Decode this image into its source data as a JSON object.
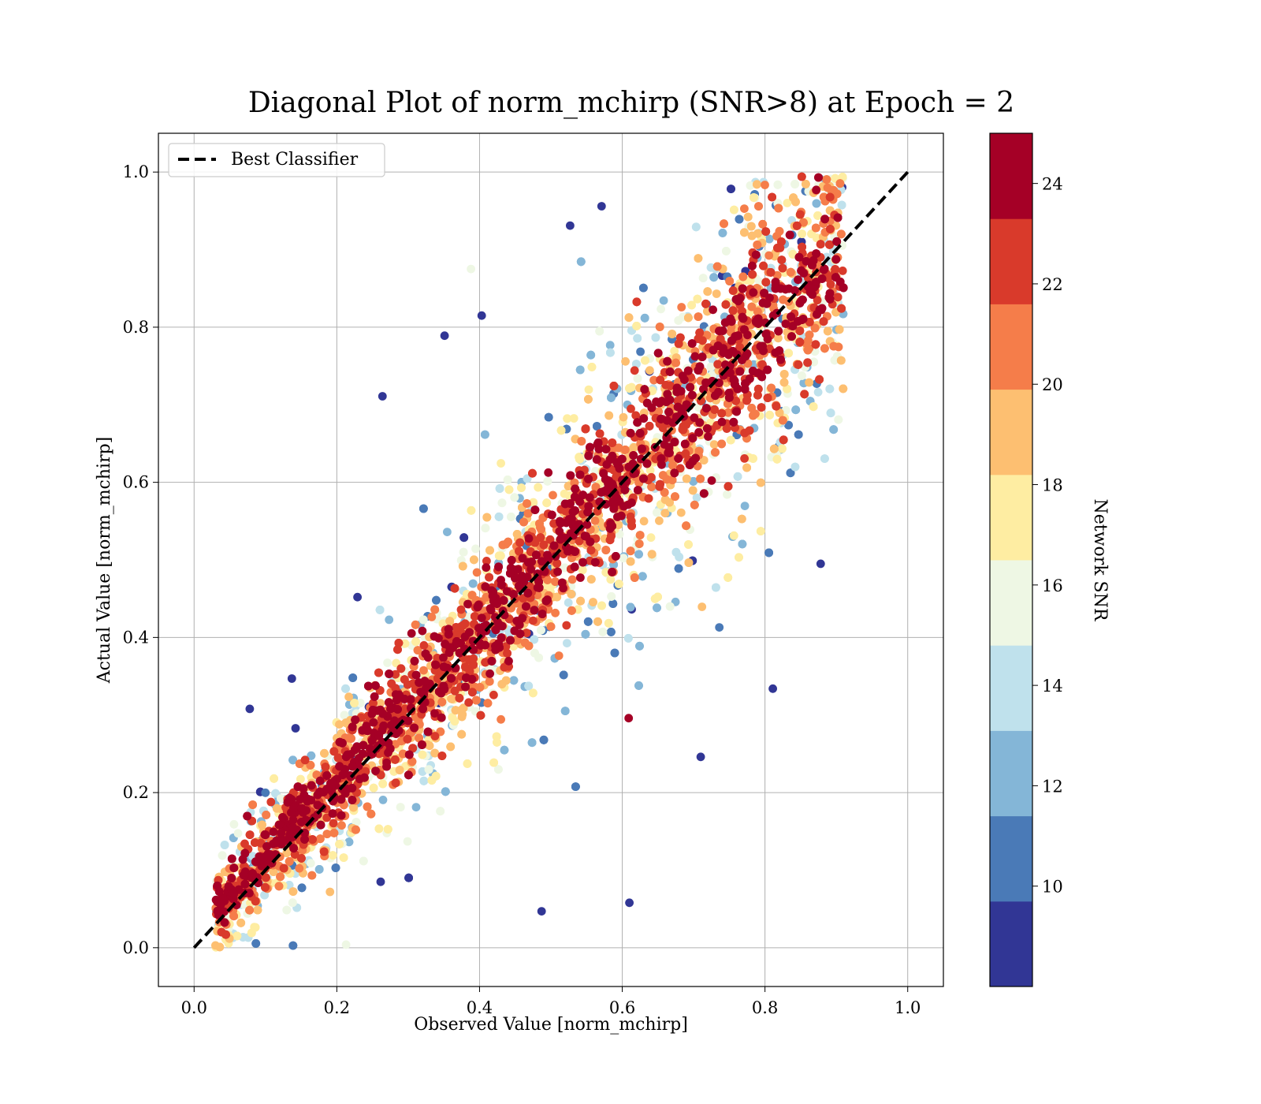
{
  "chart_data": {
    "type": "scatter",
    "title": "Diagonal Plot of norm_mchirp (SNR>8) at Epoch = 2",
    "xlabel": "Observed Value [norm_mchirp]",
    "ylabel": "Actual Value [norm_mchirp]",
    "xlim": [
      -0.05,
      1.05
    ],
    "ylim": [
      -0.05,
      1.05
    ],
    "xticks": [
      "0.0",
      "0.2",
      "0.4",
      "0.6",
      "0.8",
      "1.0"
    ],
    "yticks": [
      "0.0",
      "0.2",
      "0.4",
      "0.6",
      "0.8",
      "1.0"
    ],
    "grid": true,
    "legend": {
      "position": "top-left",
      "entries": [
        "Best Classifier"
      ]
    },
    "reference_line": {
      "name": "Best Classifier",
      "x": [
        0.0,
        1.0
      ],
      "y": [
        0.0,
        1.0
      ],
      "style": "dashed",
      "color": "#000000"
    },
    "colorbar": {
      "label": "Network SNR",
      "range": [
        8,
        25
      ],
      "ticks": [
        "10",
        "12",
        "14",
        "16",
        "18",
        "20",
        "22",
        "24"
      ],
      "tick_values": [
        10,
        12,
        14,
        16,
        18,
        20,
        22,
        24
      ],
      "bins": [
        {
          "from": 8,
          "to": 9.7,
          "color": "#313695"
        },
        {
          "from": 9.7,
          "to": 11.4,
          "color": "#4a7ab7"
        },
        {
          "from": 11.4,
          "to": 13.1,
          "color": "#84b6d7"
        },
        {
          "from": 13.1,
          "to": 14.8,
          "color": "#bfe1ec"
        },
        {
          "from": 14.8,
          "to": 16.5,
          "color": "#eef7e4"
        },
        {
          "from": 16.5,
          "to": 18.2,
          "color": "#feeda2"
        },
        {
          "from": 18.2,
          "to": 19.9,
          "color": "#fdbf71"
        },
        {
          "from": 19.9,
          "to": 21.6,
          "color": "#f57d4a"
        },
        {
          "from": 21.6,
          "to": 23.3,
          "color": "#d93a2b"
        },
        {
          "from": 23.3,
          "to": 25,
          "color": "#a50026"
        }
      ]
    },
    "points_summary": {
      "description": "Dense cloud of scattered points around the diagonal y=x; higher SNR (red) points lie tightly along the diagonal, low SNR (blue) points spread farther away.",
      "x_range": [
        0.03,
        0.91
      ],
      "y_range": [
        0.0,
        1.0
      ]
    },
    "sample_points": [
      {
        "x": 0.264,
        "y": 0.711,
        "snr": 8.5
      },
      {
        "x": 0.403,
        "y": 0.815,
        "snr": 8.5
      },
      {
        "x": 0.351,
        "y": 0.789,
        "snr": 9.5
      },
      {
        "x": 0.388,
        "y": 0.875,
        "snr": 15.0
      },
      {
        "x": 0.527,
        "y": 0.931,
        "snr": 8.5
      },
      {
        "x": 0.571,
        "y": 0.956,
        "snr": 9.0
      },
      {
        "x": 0.811,
        "y": 0.334,
        "snr": 8.5
      },
      {
        "x": 0.878,
        "y": 0.495,
        "snr": 8.5
      },
      {
        "x": 0.61,
        "y": 0.058,
        "snr": 8.5
      },
      {
        "x": 0.609,
        "y": 0.296,
        "snr": 24.5
      },
      {
        "x": 0.487,
        "y": 0.047,
        "snr": 8.5
      },
      {
        "x": 0.078,
        "y": 0.308,
        "snr": 8.5
      },
      {
        "x": 0.137,
        "y": 0.347,
        "snr": 8.5
      },
      {
        "x": 0.229,
        "y": 0.452,
        "snr": 8.5
      },
      {
        "x": 0.736,
        "y": 0.413,
        "snr": 10.0
      },
      {
        "x": 0.71,
        "y": 0.246,
        "snr": 8.5
      },
      {
        "x": 0.213,
        "y": 0.004,
        "snr": 15.0
      },
      {
        "x": 0.03,
        "y": 0.003,
        "snr": 19.0
      }
    ]
  }
}
